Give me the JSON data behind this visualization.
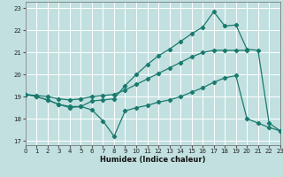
{
  "xlabel": "Humidex (Indice chaleur)",
  "xlim": [
    0,
    23
  ],
  "ylim": [
    16.8,
    23.3
  ],
  "yticks": [
    17,
    18,
    19,
    20,
    21,
    22,
    23
  ],
  "xticks": [
    0,
    1,
    2,
    3,
    4,
    5,
    6,
    7,
    8,
    9,
    10,
    11,
    12,
    13,
    14,
    15,
    16,
    17,
    18,
    19,
    20,
    21,
    22,
    23
  ],
  "bg_color": "#c2e0e0",
  "grid_color": "#ffffff",
  "line_color": "#1a7a6e",
  "line1_x": [
    0,
    1,
    2,
    3,
    4,
    5,
    6,
    7,
    8,
    9,
    10,
    11,
    12,
    13,
    14,
    15,
    16,
    17,
    18,
    19,
    20,
    21,
    22,
    23
  ],
  "line1_y": [
    19.1,
    19.0,
    18.85,
    18.65,
    18.55,
    18.55,
    18.4,
    17.9,
    17.2,
    18.35,
    18.5,
    18.6,
    18.75,
    18.85,
    19.0,
    19.2,
    19.4,
    19.65,
    19.85,
    19.95,
    18.0,
    17.8,
    17.6,
    17.45
  ],
  "line2_x": [
    0,
    1,
    2,
    3,
    4,
    5,
    6,
    7,
    8,
    9,
    10,
    11,
    12,
    13,
    14,
    15,
    16,
    17,
    18,
    19,
    20
  ],
  "line2_y": [
    19.1,
    19.05,
    19.0,
    18.9,
    18.85,
    18.9,
    19.0,
    19.05,
    19.1,
    19.3,
    19.55,
    19.8,
    20.05,
    20.3,
    20.55,
    20.8,
    21.0,
    21.1,
    21.1,
    21.1,
    21.1
  ],
  "line3_x": [
    0,
    1,
    2,
    3,
    4,
    5,
    6,
    7,
    8,
    9,
    10,
    11,
    12,
    13,
    14,
    15,
    16,
    17,
    18,
    19,
    20,
    21,
    22,
    23
  ],
  "line3_y": [
    19.1,
    19.0,
    18.85,
    18.65,
    18.5,
    18.55,
    18.8,
    18.85,
    18.9,
    19.5,
    20.0,
    20.45,
    20.85,
    21.15,
    21.5,
    21.85,
    22.15,
    22.85,
    22.2,
    22.25,
    21.15,
    21.1,
    17.8,
    17.45
  ]
}
